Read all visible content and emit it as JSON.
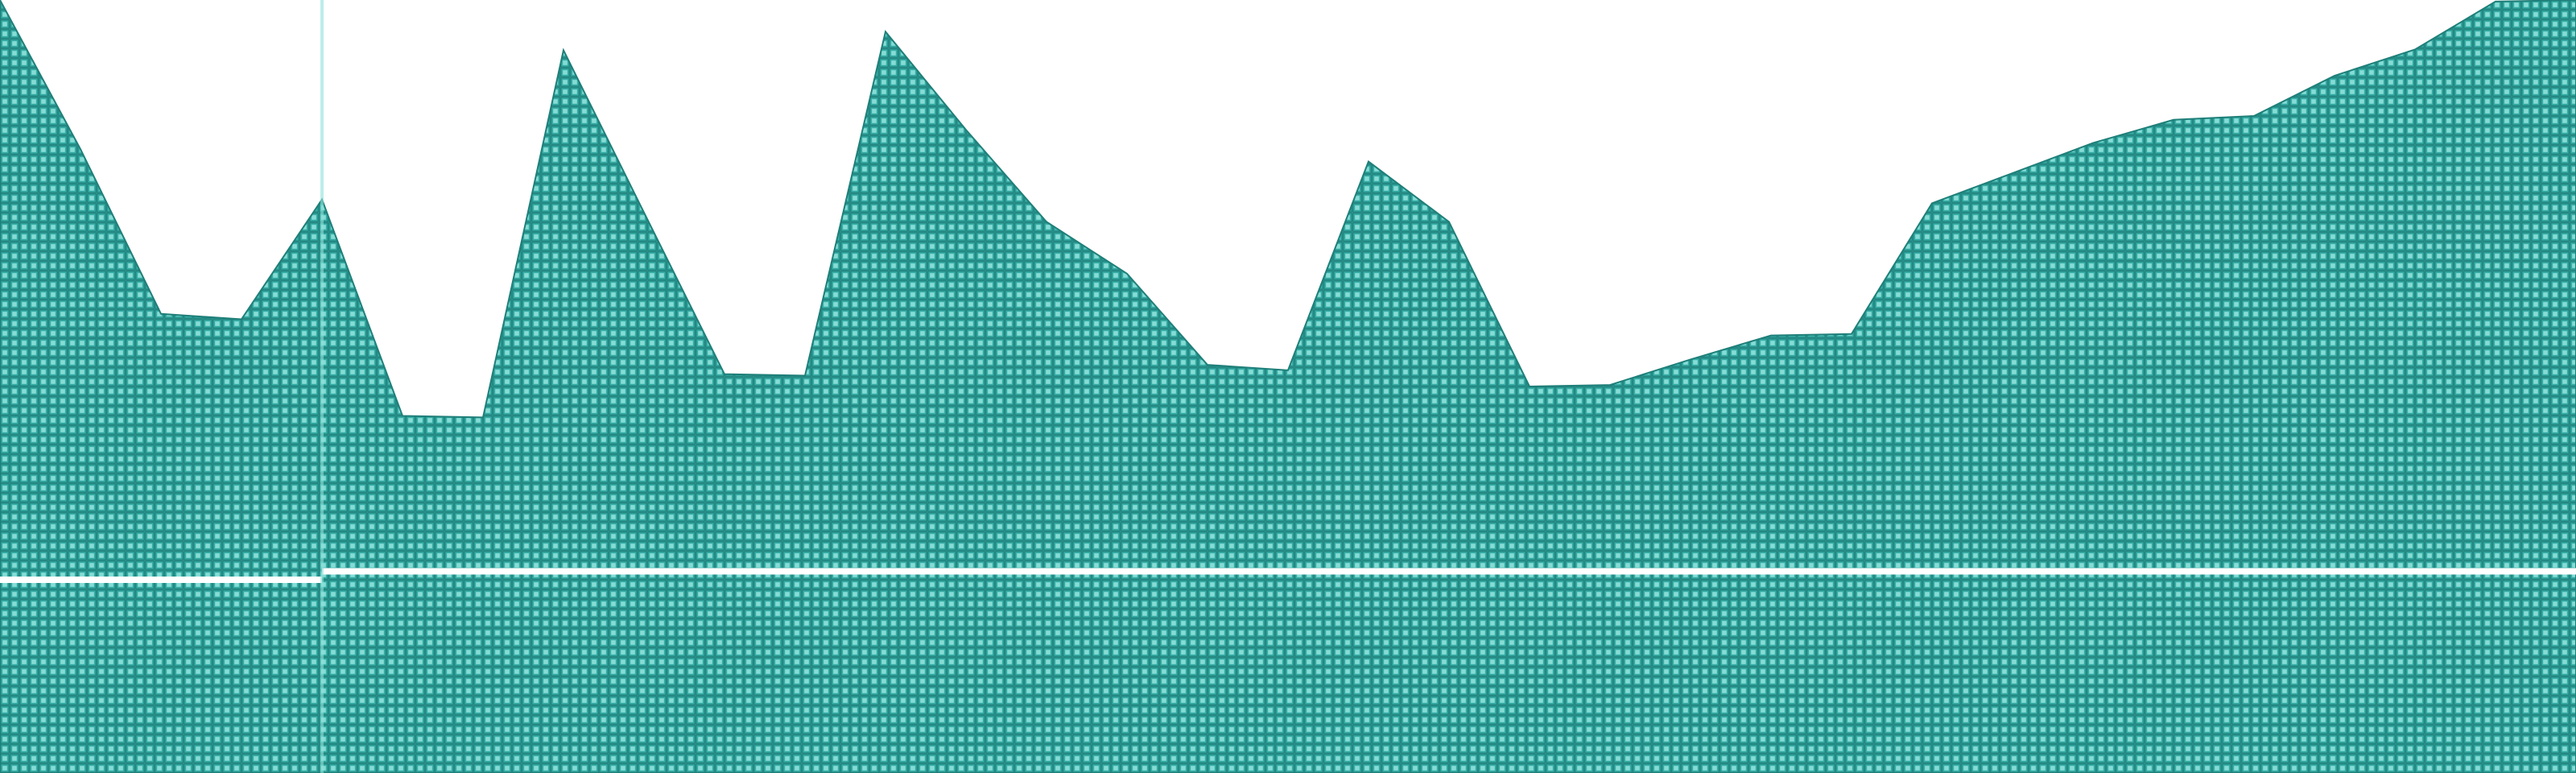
{
  "chart_data": {
    "type": "area",
    "title": "",
    "xlabel": "",
    "ylabel": "",
    "x": [
      0,
      1,
      2,
      3,
      4,
      5,
      6,
      7,
      8,
      9,
      10,
      11,
      12,
      13,
      14,
      15,
      16,
      17,
      18,
      19,
      20,
      21,
      22,
      23,
      24,
      25,
      26,
      27,
      28,
      29,
      30,
      31,
      32
    ],
    "xlim": [
      0,
      32
    ],
    "ylim": [
      0,
      100
    ],
    "series": [
      {
        "values": [
          100,
          80.7,
          59.4,
          58.7,
          74.2,
          46.2,
          46.0,
          93.5,
          72.5,
          51.6,
          51.4,
          95.9,
          83.2,
          71.3,
          64.6,
          52.8,
          52.1,
          79.1,
          71.3,
          50.0,
          50.2,
          53.5,
          56.6,
          56.8,
          73.7,
          77.6,
          81.5,
          84.5,
          85.0,
          90.2,
          93.6,
          99.8,
          100
        ]
      }
    ],
    "baseline_lines": [
      {
        "x_start": 0,
        "x_end": 4,
        "y": 25.0
      },
      {
        "x_start": 4,
        "x_end": 32,
        "y": 26.1
      }
    ],
    "panel_divider_x": 4,
    "grid": false,
    "legend": "none",
    "colors": {
      "fill": "#36aea6",
      "fill_dark": "#1f7f79",
      "fill_light": "#8fe2db",
      "line": "#ffffff",
      "background": "#ffffff"
    }
  }
}
